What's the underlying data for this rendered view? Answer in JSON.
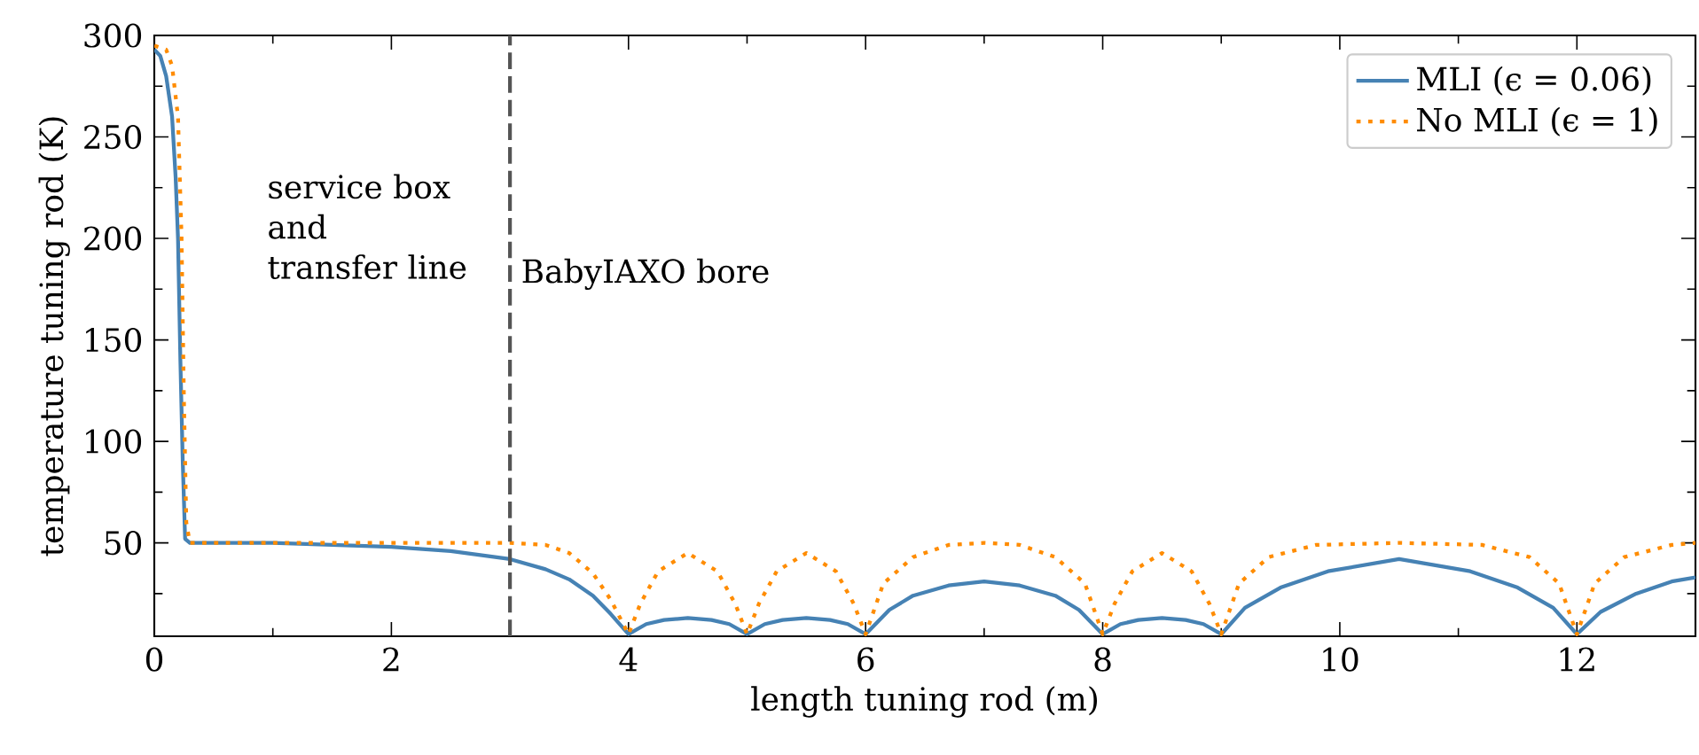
{
  "chart_data": {
    "type": "line",
    "xlabel": "length tuning rod (m)",
    "ylabel": "temperature tuning rod (K)",
    "xlim": [
      0,
      13
    ],
    "ylim": [
      4,
      300
    ],
    "xticks": [
      0,
      2,
      4,
      6,
      8,
      10,
      12
    ],
    "yticks": [
      50,
      100,
      150,
      200,
      250,
      300
    ],
    "legend": "top right",
    "grid": false,
    "marker": "none",
    "series": [
      {
        "name": "MLI (ϵ = 0.06)",
        "color": "#4682b4",
        "line_style": "solid",
        "x": [
          0,
          0.05,
          0.1,
          0.15,
          0.18,
          0.2,
          0.22,
          0.24,
          0.26,
          0.3,
          1,
          1.5,
          2,
          2.5,
          3,
          3.3,
          3.5,
          3.7,
          3.85,
          4,
          4.15,
          4.3,
          4.5,
          4.7,
          4.85,
          5,
          5.15,
          5.3,
          5.5,
          5.7,
          5.85,
          6,
          6.2,
          6.4,
          6.7,
          7,
          7.3,
          7.6,
          7.8,
          8,
          8.15,
          8.3,
          8.5,
          8.7,
          8.85,
          9,
          9.2,
          9.5,
          9.9,
          10.5,
          11.1,
          11.5,
          11.8,
          12,
          12.2,
          12.5,
          12.8,
          13
        ],
        "values": [
          293,
          290,
          280,
          260,
          230,
          200,
          140,
          90,
          52,
          50,
          50,
          49,
          48,
          46,
          42,
          37,
          32,
          24,
          15,
          5,
          10,
          12,
          13,
          12,
          10,
          5,
          10,
          12,
          13,
          12,
          10,
          5,
          17,
          24,
          29,
          31,
          29,
          24,
          17,
          5,
          10,
          12,
          13,
          12,
          10,
          5,
          18,
          28,
          36,
          42,
          36,
          28,
          18,
          5,
          16,
          25,
          31,
          33
        ]
      },
      {
        "name": "No MLI (ϵ = 1)",
        "color": "#ff8c00",
        "line_style": "dotted",
        "x": [
          0,
          0.1,
          0.15,
          0.2,
          0.23,
          0.25,
          0.27,
          0.3,
          3,
          3.3,
          3.5,
          3.7,
          3.85,
          4,
          4.1,
          4.25,
          4.5,
          4.75,
          4.9,
          5,
          5.1,
          5.25,
          5.5,
          5.75,
          5.9,
          6,
          6.15,
          6.4,
          6.7,
          7,
          7.3,
          7.6,
          7.85,
          8,
          8.1,
          8.25,
          8.5,
          8.75,
          8.9,
          9,
          9.15,
          9.4,
          9.8,
          10.5,
          11.2,
          11.6,
          11.85,
          12,
          12.15,
          12.4,
          12.8,
          13
        ],
        "values": [
          295,
          293,
          285,
          260,
          200,
          120,
          60,
          50,
          50,
          49,
          45,
          35,
          22,
          5,
          20,
          36,
          45,
          36,
          20,
          5,
          20,
          36,
          45,
          36,
          20,
          5,
          30,
          43,
          49,
          50,
          49,
          43,
          30,
          5,
          20,
          36,
          45,
          36,
          20,
          5,
          30,
          43,
          49,
          50,
          49,
          43,
          30,
          5,
          30,
          43,
          49,
          50
        ]
      }
    ],
    "ref_lines": [
      {
        "axis": "x",
        "value": 3,
        "label": "BabyIAXO bore",
        "color": "#555555",
        "line_style": "dashed"
      }
    ],
    "annotations": [
      "service box",
      "and",
      "transfer line"
    ]
  }
}
